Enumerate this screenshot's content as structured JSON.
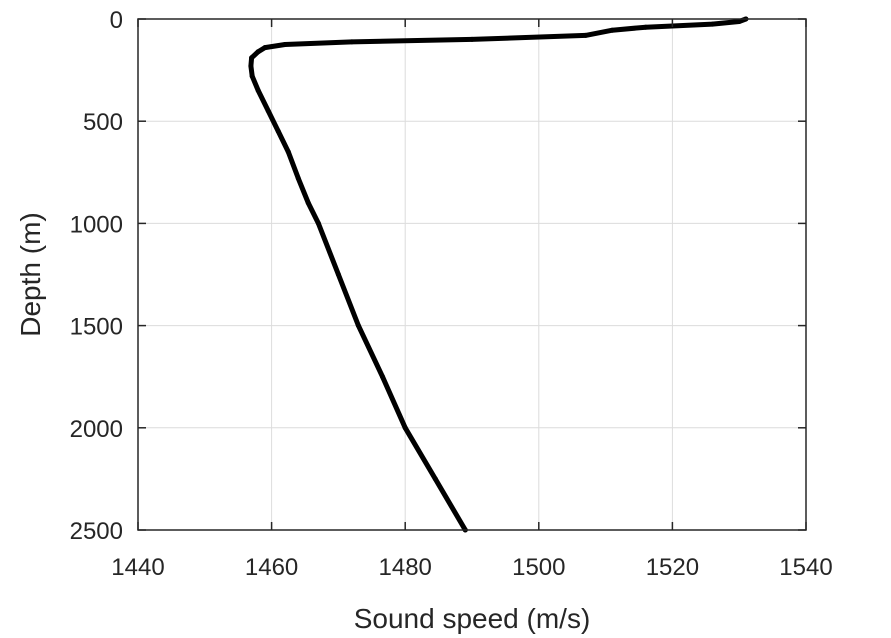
{
  "chart_data": {
    "type": "line",
    "xlabel": "Sound speed (m/s)",
    "ylabel": "Depth (m)",
    "xlim": [
      1440,
      1540
    ],
    "ylim": [
      0,
      2500
    ],
    "y_reversed": true,
    "grid": true,
    "xticks": [
      "1440",
      "1460",
      "1480",
      "1500",
      "1520",
      "1540"
    ],
    "yticks": [
      "0",
      "500",
      "1000",
      "1500",
      "2000",
      "2500"
    ],
    "line_color": "#000000",
    "series": [
      {
        "points": [
          [
            1531,
            0
          ],
          [
            1530,
            12
          ],
          [
            1526,
            25
          ],
          [
            1516,
            40
          ],
          [
            1511,
            55
          ],
          [
            1507,
            80
          ],
          [
            1490,
            100
          ],
          [
            1472,
            112
          ],
          [
            1462,
            125
          ],
          [
            1459,
            140
          ],
          [
            1458,
            160
          ],
          [
            1457,
            190
          ],
          [
            1456.9,
            230
          ],
          [
            1457.1,
            280
          ],
          [
            1458,
            350
          ],
          [
            1459.5,
            450
          ],
          [
            1461,
            550
          ],
          [
            1462.5,
            650
          ],
          [
            1464,
            780
          ],
          [
            1465.5,
            900
          ],
          [
            1467,
            1000
          ],
          [
            1470,
            1250
          ],
          [
            1473,
            1500
          ],
          [
            1476.6,
            1750
          ],
          [
            1480,
            2000
          ],
          [
            1484.5,
            2250
          ],
          [
            1489,
            2500
          ]
        ]
      }
    ]
  }
}
